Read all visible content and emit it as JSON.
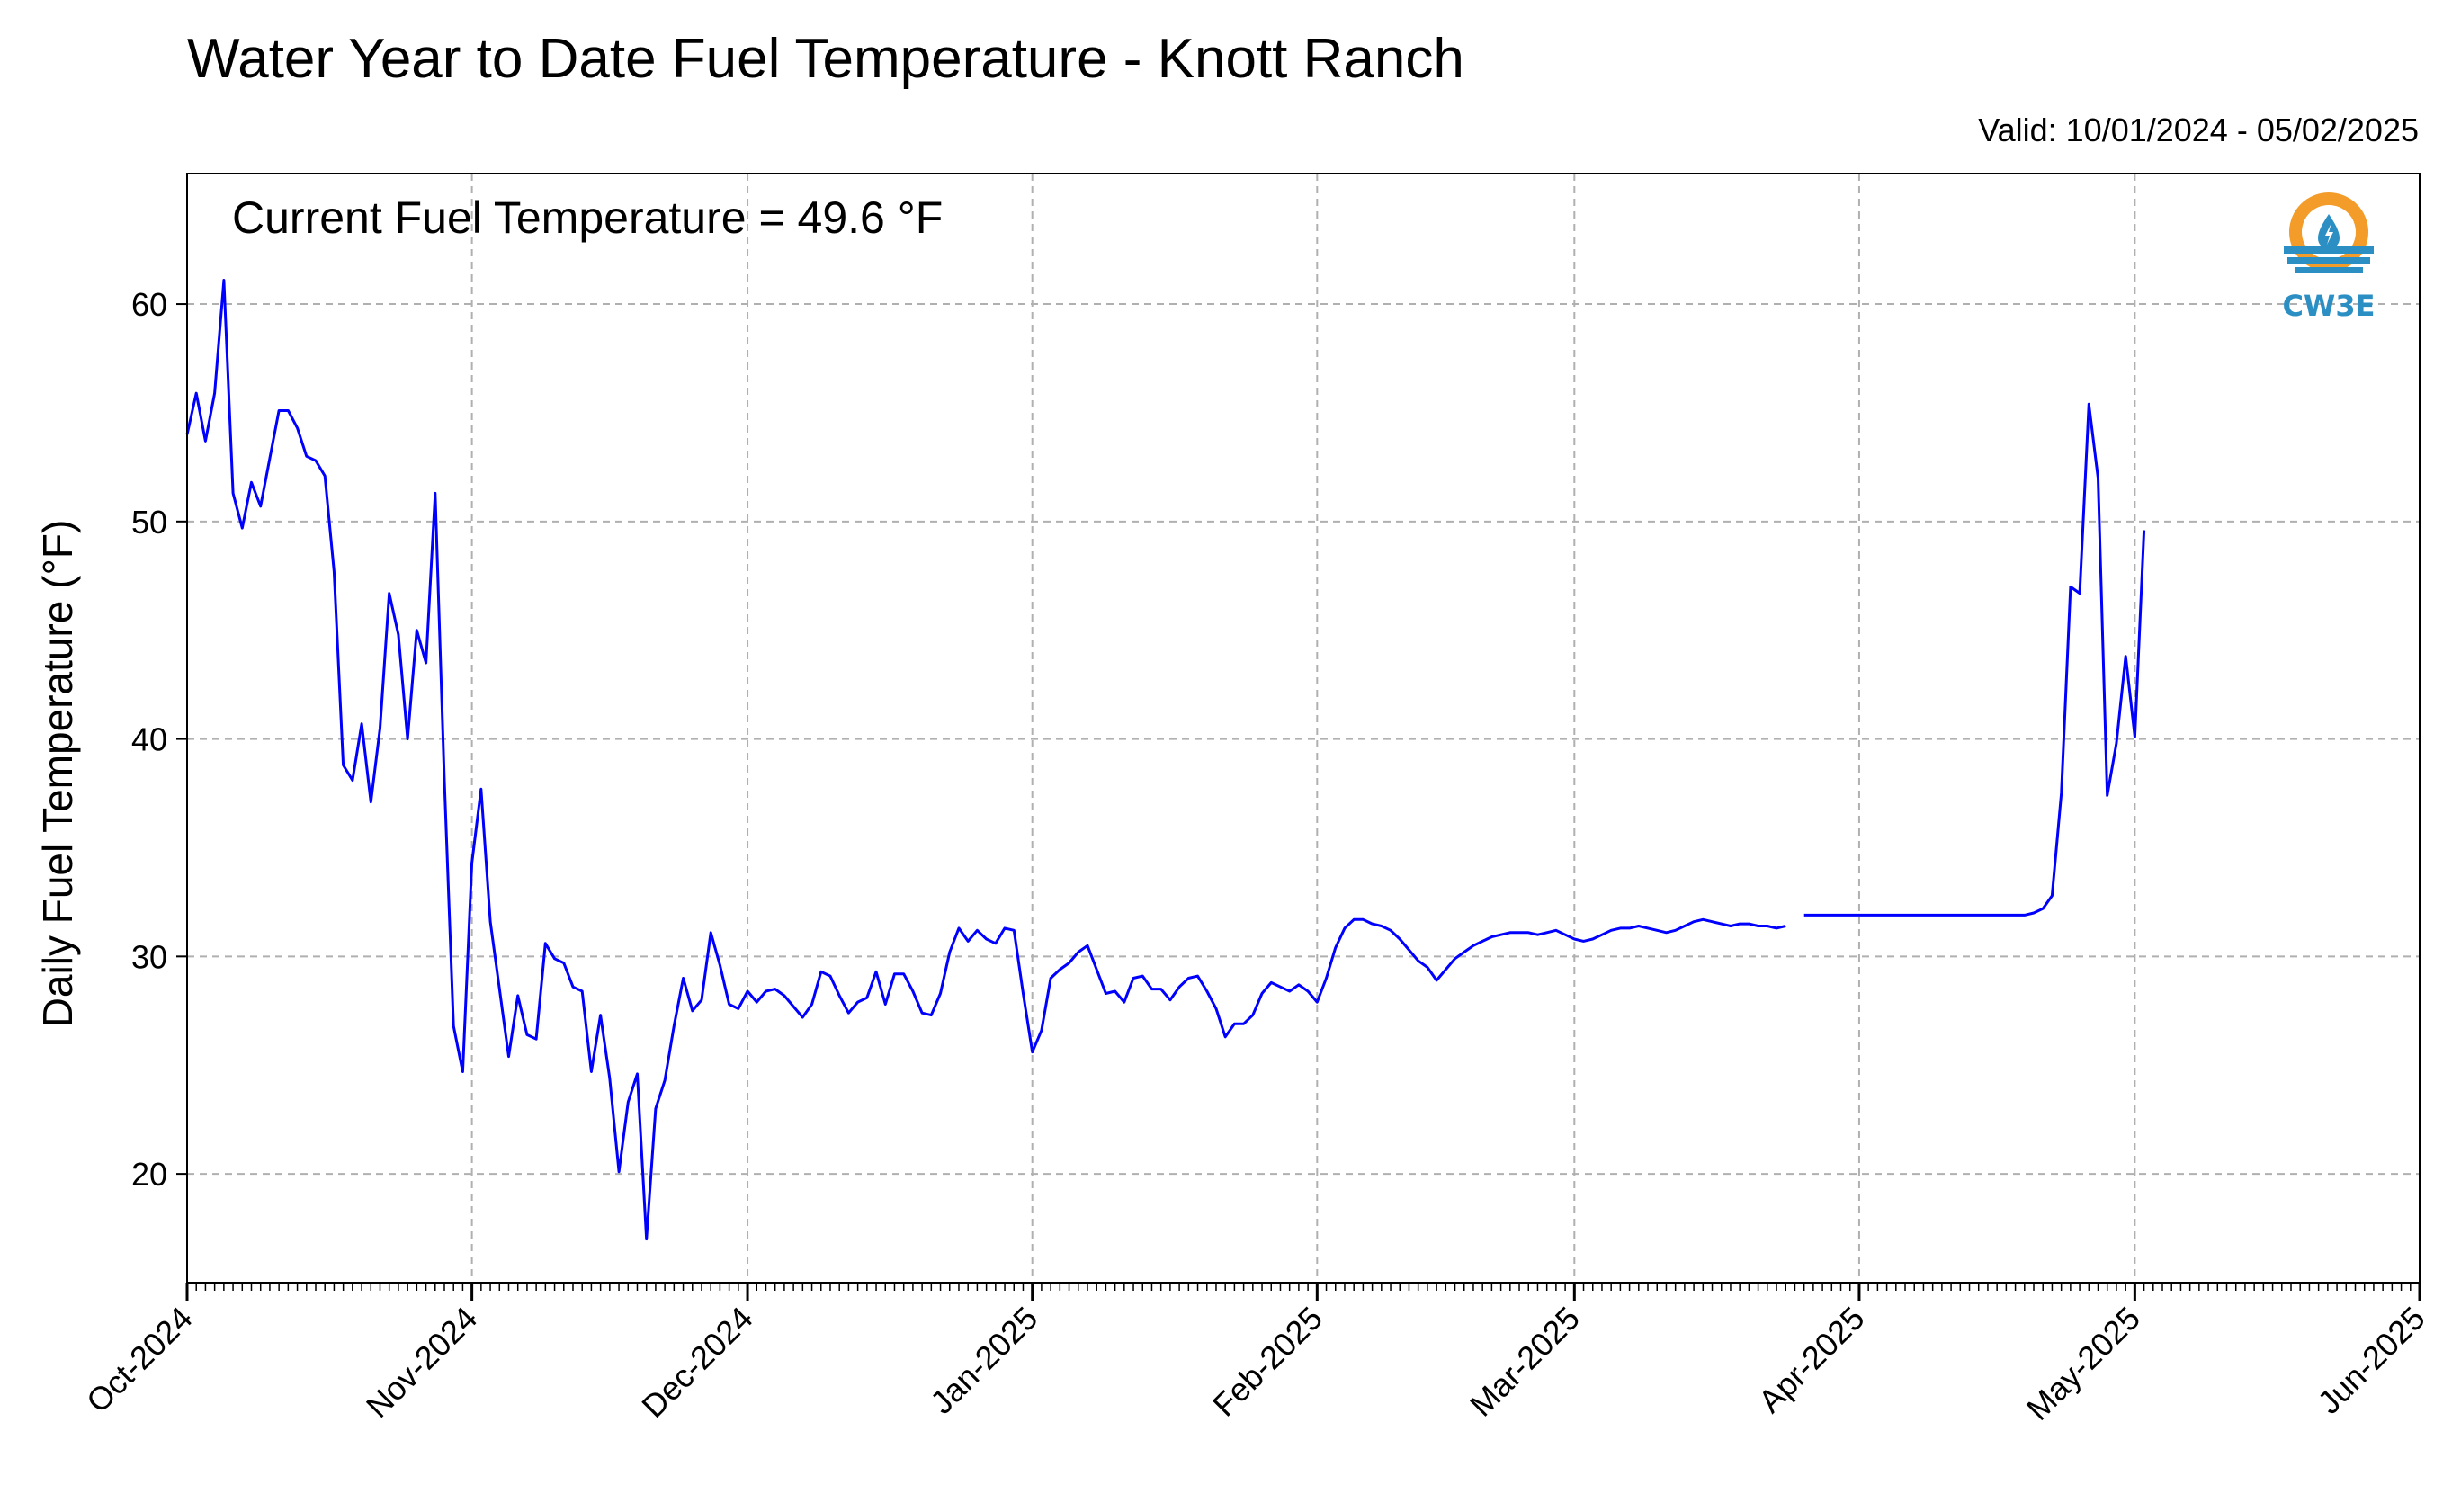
{
  "title": "Water Year to Date Fuel Temperature - Knott Ranch",
  "valid": "Valid: 10/01/2024 - 05/02/2025",
  "annotation": "Current Fuel Temperature = 49.6 °F",
  "logo": {
    "text": "CW3E",
    "colors": {
      "orange": "#f39c2a",
      "blue": "#2b8fc4"
    }
  },
  "colors": {
    "line": "#0000ff",
    "grid": "#b0b0b0",
    "axis": "#000000"
  },
  "chart_data": {
    "type": "line",
    "title": "Water Year to Date Fuel Temperature - Knott Ranch",
    "xlabel": "",
    "ylabel": "Daily Fuel Temperature (°F)",
    "xlim": [
      "2024-10-01",
      "2025-06-01"
    ],
    "ylim": [
      15,
      66
    ],
    "yticks": [
      20,
      30,
      40,
      50,
      60
    ],
    "xticks": [
      {
        "date": "2024-10-01",
        "label": "Oct-2024"
      },
      {
        "date": "2024-11-01",
        "label": "Nov-2024"
      },
      {
        "date": "2024-12-01",
        "label": "Dec-2024"
      },
      {
        "date": "2025-01-01",
        "label": "Jan-2025"
      },
      {
        "date": "2025-02-01",
        "label": "Feb-2025"
      },
      {
        "date": "2025-03-01",
        "label": "Mar-2025"
      },
      {
        "date": "2025-04-01",
        "label": "Apr-2025"
      },
      {
        "date": "2025-05-01",
        "label": "May-2025"
      },
      {
        "date": "2025-06-01",
        "label": "Jun-2025"
      }
    ],
    "grid": true,
    "series": [
      {
        "points": [
          [
            "2024-10-01",
            54.0
          ],
          [
            "2024-10-02",
            55.9
          ],
          [
            "2024-10-03",
            53.7
          ],
          [
            "2024-10-04",
            55.9
          ],
          [
            "2024-10-05",
            61.1
          ],
          [
            "2024-10-06",
            51.3
          ],
          [
            "2024-10-07",
            49.7
          ],
          [
            "2024-10-08",
            51.8
          ],
          [
            "2024-10-09",
            50.7
          ],
          [
            "2024-10-10",
            52.9
          ],
          [
            "2024-10-11",
            55.1
          ],
          [
            "2024-10-12",
            55.1
          ],
          [
            "2024-10-13",
            54.3
          ],
          [
            "2024-10-14",
            53.0
          ],
          [
            "2024-10-15",
            52.8
          ],
          [
            "2024-10-16",
            52.1
          ],
          [
            "2024-10-17",
            47.7
          ],
          [
            "2024-10-18",
            38.8
          ],
          [
            "2024-10-19",
            38.1
          ],
          [
            "2024-10-20",
            40.7
          ],
          [
            "2024-10-21",
            37.1
          ],
          [
            "2024-10-22",
            40.5
          ],
          [
            "2024-10-23",
            46.7
          ],
          [
            "2024-10-24",
            44.8
          ],
          [
            "2024-10-25",
            40.0
          ],
          [
            "2024-10-26",
            45.0
          ],
          [
            "2024-10-27",
            43.5
          ],
          [
            "2024-10-28",
            51.3
          ],
          [
            "2024-10-29",
            38.1
          ],
          [
            "2024-10-30",
            26.8
          ],
          [
            "2024-10-31",
            24.7
          ],
          [
            "2024-11-01",
            34.3
          ],
          [
            "2024-11-02",
            37.7
          ],
          [
            "2024-11-03",
            31.6
          ],
          [
            "2024-11-04",
            28.5
          ],
          [
            "2024-11-05",
            25.4
          ],
          [
            "2024-11-06",
            28.2
          ],
          [
            "2024-11-07",
            26.4
          ],
          [
            "2024-11-08",
            26.2
          ],
          [
            "2024-11-09",
            30.6
          ],
          [
            "2024-11-10",
            29.9
          ],
          [
            "2024-11-11",
            29.7
          ],
          [
            "2024-11-12",
            28.6
          ],
          [
            "2024-11-13",
            28.4
          ],
          [
            "2024-11-14",
            24.7
          ],
          [
            "2024-11-15",
            27.3
          ],
          [
            "2024-11-16",
            24.4
          ],
          [
            "2024-11-17",
            20.1
          ],
          [
            "2024-11-18",
            23.3
          ],
          [
            "2024-11-19",
            24.6
          ],
          [
            "2024-11-20",
            17.0
          ],
          [
            "2024-11-21",
            23.0
          ],
          [
            "2024-11-22",
            24.3
          ],
          [
            "2024-11-23",
            26.8
          ],
          [
            "2024-11-24",
            29.0
          ],
          [
            "2024-11-25",
            27.5
          ],
          [
            "2024-11-26",
            28.0
          ],
          [
            "2024-11-27",
            31.1
          ],
          [
            "2024-11-28",
            29.6
          ],
          [
            "2024-11-29",
            27.8
          ],
          [
            "2024-11-30",
            27.6
          ],
          [
            "2024-12-01",
            28.4
          ],
          [
            "2024-12-02",
            27.9
          ],
          [
            "2024-12-03",
            28.4
          ],
          [
            "2024-12-04",
            28.5
          ],
          [
            "2024-12-05",
            28.2
          ],
          [
            "2024-12-06",
            27.7
          ],
          [
            "2024-12-07",
            27.2
          ],
          [
            "2024-12-08",
            27.8
          ],
          [
            "2024-12-09",
            29.3
          ],
          [
            "2024-12-10",
            29.1
          ],
          [
            "2024-12-11",
            28.2
          ],
          [
            "2024-12-12",
            27.4
          ],
          [
            "2024-12-13",
            27.9
          ],
          [
            "2024-12-14",
            28.1
          ],
          [
            "2024-12-15",
            29.3
          ],
          [
            "2024-12-16",
            27.8
          ],
          [
            "2024-12-17",
            29.2
          ],
          [
            "2024-12-18",
            29.2
          ],
          [
            "2024-12-19",
            28.4
          ],
          [
            "2024-12-20",
            27.4
          ],
          [
            "2024-12-21",
            27.3
          ],
          [
            "2024-12-22",
            28.3
          ],
          [
            "2024-12-23",
            30.2
          ],
          [
            "2024-12-24",
            31.3
          ],
          [
            "2024-12-25",
            30.7
          ],
          [
            "2024-12-26",
            31.2
          ],
          [
            "2024-12-27",
            30.8
          ],
          [
            "2024-12-28",
            30.6
          ],
          [
            "2024-12-29",
            31.3
          ],
          [
            "2024-12-30",
            31.2
          ],
          [
            "2024-12-31",
            28.3
          ],
          [
            "2025-01-01",
            25.6
          ],
          [
            "2025-01-02",
            26.6
          ],
          [
            "2025-01-03",
            29.0
          ],
          [
            "2025-01-04",
            29.4
          ],
          [
            "2025-01-05",
            29.7
          ],
          [
            "2025-01-06",
            30.2
          ],
          [
            "2025-01-07",
            30.5
          ],
          [
            "2025-01-08",
            29.4
          ],
          [
            "2025-01-09",
            28.3
          ],
          [
            "2025-01-10",
            28.4
          ],
          [
            "2025-01-11",
            27.9
          ],
          [
            "2025-01-12",
            29.0
          ],
          [
            "2025-01-13",
            29.1
          ],
          [
            "2025-01-14",
            28.5
          ],
          [
            "2025-01-15",
            28.5
          ],
          [
            "2025-01-16",
            28.0
          ],
          [
            "2025-01-17",
            28.6
          ],
          [
            "2025-01-18",
            29.0
          ],
          [
            "2025-01-19",
            29.1
          ],
          [
            "2025-01-20",
            28.4
          ],
          [
            "2025-01-21",
            27.6
          ],
          [
            "2025-01-22",
            26.3
          ],
          [
            "2025-01-23",
            26.9
          ],
          [
            "2025-01-24",
            26.9
          ],
          [
            "2025-01-25",
            27.3
          ],
          [
            "2025-01-26",
            28.3
          ],
          [
            "2025-01-27",
            28.8
          ],
          [
            "2025-01-28",
            28.6
          ],
          [
            "2025-01-29",
            28.4
          ],
          [
            "2025-01-30",
            28.7
          ],
          [
            "2025-01-31",
            28.4
          ],
          [
            "2025-02-01",
            27.9
          ],
          [
            "2025-02-02",
            29.0
          ],
          [
            "2025-02-03",
            30.4
          ],
          [
            "2025-02-04",
            31.3
          ],
          [
            "2025-02-05",
            31.7
          ],
          [
            "2025-02-06",
            31.7
          ],
          [
            "2025-02-07",
            31.5
          ],
          [
            "2025-02-08",
            31.4
          ],
          [
            "2025-02-09",
            31.2
          ],
          [
            "2025-02-10",
            30.8
          ],
          [
            "2025-02-11",
            30.3
          ],
          [
            "2025-02-12",
            29.8
          ],
          [
            "2025-02-13",
            29.5
          ],
          [
            "2025-02-14",
            28.9
          ],
          [
            "2025-02-15",
            29.4
          ],
          [
            "2025-02-16",
            29.9
          ],
          [
            "2025-02-17",
            30.2
          ],
          [
            "2025-02-18",
            30.5
          ],
          [
            "2025-02-19",
            30.7
          ],
          [
            "2025-02-20",
            30.9
          ],
          [
            "2025-02-21",
            31.0
          ],
          [
            "2025-02-22",
            31.1
          ],
          [
            "2025-02-23",
            31.1
          ],
          [
            "2025-02-24",
            31.1
          ],
          [
            "2025-02-25",
            31.0
          ],
          [
            "2025-02-26",
            31.1
          ],
          [
            "2025-02-27",
            31.2
          ],
          [
            "2025-02-28",
            31.0
          ],
          [
            "2025-03-01",
            30.8
          ],
          [
            "2025-03-02",
            30.7
          ],
          [
            "2025-03-03",
            30.8
          ],
          [
            "2025-03-04",
            31.0
          ],
          [
            "2025-03-05",
            31.2
          ],
          [
            "2025-03-06",
            31.3
          ],
          [
            "2025-03-07",
            31.3
          ],
          [
            "2025-03-08",
            31.4
          ],
          [
            "2025-03-09",
            31.3
          ],
          [
            "2025-03-10",
            31.2
          ],
          [
            "2025-03-11",
            31.1
          ],
          [
            "2025-03-12",
            31.2
          ],
          [
            "2025-03-13",
            31.4
          ],
          [
            "2025-03-14",
            31.6
          ],
          [
            "2025-03-15",
            31.7
          ],
          [
            "2025-03-16",
            31.6
          ],
          [
            "2025-03-17",
            31.5
          ],
          [
            "2025-03-18",
            31.4
          ],
          [
            "2025-03-19",
            31.5
          ],
          [
            "2025-03-20",
            31.5
          ],
          [
            "2025-03-21",
            31.4
          ],
          [
            "2025-03-22",
            31.4
          ],
          [
            "2025-03-23",
            31.3
          ],
          [
            "2025-03-24",
            31.4
          ],
          null,
          [
            "2025-03-26",
            31.9
          ],
          [
            "2025-03-31",
            31.9
          ],
          [
            "2025-04-05",
            31.9
          ],
          [
            "2025-04-10",
            31.9
          ],
          [
            "2025-04-15",
            31.9
          ],
          [
            "2025-04-17",
            31.9
          ],
          [
            "2025-04-18",
            31.9
          ],
          [
            "2025-04-19",
            31.9
          ],
          [
            "2025-04-20",
            32.0
          ],
          [
            "2025-04-21",
            32.2
          ],
          [
            "2025-04-22",
            32.8
          ],
          [
            "2025-04-23",
            37.5
          ],
          [
            "2025-04-24",
            47.0
          ],
          [
            "2025-04-25",
            46.7
          ],
          [
            "2025-04-26",
            55.4
          ],
          [
            "2025-04-27",
            52.0
          ],
          [
            "2025-04-28",
            37.4
          ],
          [
            "2025-04-29",
            39.8
          ],
          [
            "2025-04-30",
            43.8
          ],
          [
            "2025-05-01",
            40.1
          ],
          [
            "2025-05-02",
            49.6
          ]
        ]
      }
    ]
  }
}
